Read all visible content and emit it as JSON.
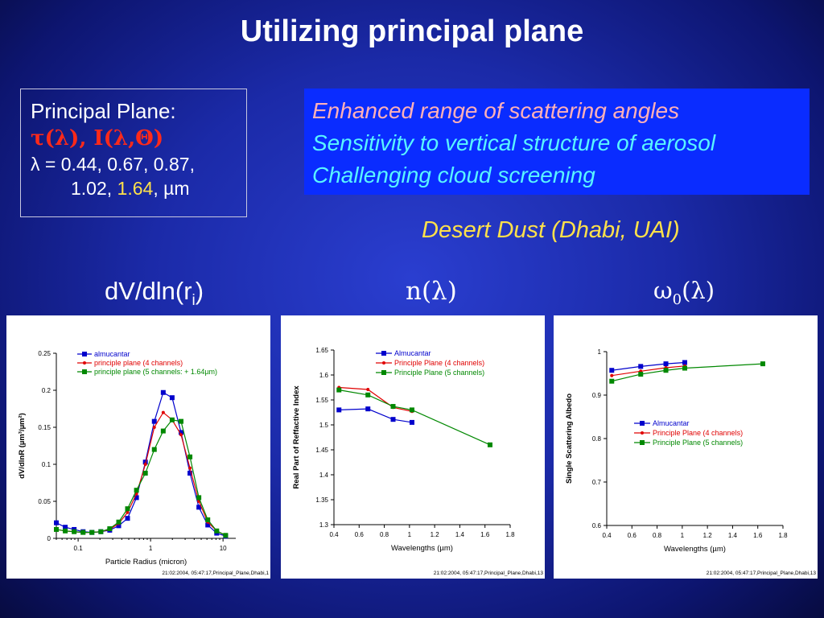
{
  "title": "Utilizing principal plane",
  "principal_plane": {
    "heading": "Principal Plane:",
    "quantities": "τ(λ), I(λ,Θ)",
    "lambda_line": "λ = 0.44, 0.67, 0.87,",
    "lambda_line2_a": "1.02, ",
    "lambda_line2_b": "1.64",
    "lambda_line2_c": ", µm"
  },
  "features": [
    "Enhanced range of scattering angles",
    "Sensitivity to vertical structure of aerosol",
    "Challenging cloud screening"
  ],
  "dust_label": "Desert Dust (Dhabi, UAI)",
  "panel_titles": {
    "size": "dV/dln(r",
    "size_sub": "i",
    "size_close": ")",
    "refr": "n(λ)",
    "ssa": "ω",
    "ssa_sub": "0",
    "ssa_arg": "(λ)"
  },
  "colors": {
    "almucantar": "#0000cc",
    "pp4": "#e00000",
    "pp5": "#008800"
  },
  "chart_data": [
    {
      "type": "line",
      "xlabel": "Particle Radius (micron)",
      "ylabel": "dV/dlnR (µm³/µm²)",
      "xscale": "log",
      "xlim": [
        0.05,
        15
      ],
      "ylim": [
        0,
        0.25
      ],
      "xticks": [
        "0.1",
        "1",
        "10"
      ],
      "yticks": [
        "0",
        "0.05",
        "0.1",
        "0.15",
        "0.2",
        "0.25"
      ],
      "footer": "21:02:2004, 05:47:17,Principal_Plane,Dhabi,1",
      "legend_position": "top",
      "x": [
        0.05,
        0.0664,
        0.0881,
        0.117,
        0.155,
        0.206,
        0.273,
        0.363,
        0.481,
        0.639,
        0.848,
        1.126,
        1.495,
        1.984,
        2.634,
        3.497,
        4.642,
        6.162,
        8.18,
        10.86
      ],
      "series": [
        {
          "name": "almucantar",
          "color": "#0000cc",
          "marker": "square",
          "values": [
            0.021,
            0.015,
            0.012,
            0.009,
            0.008,
            0.009,
            0.011,
            0.017,
            0.027,
            0.055,
            0.103,
            0.158,
            0.197,
            0.19,
            0.143,
            0.088,
            0.042,
            0.018,
            0.007,
            0.003
          ]
        },
        {
          "name": "principle plane (4 channels)",
          "color": "#e00000",
          "marker": "dot",
          "values": [
            0.012,
            0.01,
            0.009,
            0.008,
            0.008,
            0.009,
            0.012,
            0.02,
            0.035,
            0.06,
            0.1,
            0.15,
            0.17,
            0.16,
            0.14,
            0.095,
            0.05,
            0.022,
            0.01,
            0.004
          ]
        },
        {
          "name": "principle plane (5 channels: + 1.64µm)",
          "color": "#008800",
          "marker": "square",
          "values": [
            0.012,
            0.01,
            0.009,
            0.008,
            0.008,
            0.009,
            0.013,
            0.022,
            0.04,
            0.065,
            0.088,
            0.12,
            0.145,
            0.16,
            0.158,
            0.11,
            0.055,
            0.025,
            0.01,
            0.004
          ]
        }
      ]
    },
    {
      "type": "line",
      "xlabel": "Wavelengths (µm)",
      "ylabel": "Real Part of  Reffactive Index",
      "xlim": [
        0.4,
        1.8
      ],
      "ylim": [
        1.3,
        1.65
      ],
      "xticks": [
        "0.4",
        "0.6",
        "0.8",
        "1",
        "1.2",
        "1.4",
        "1.6",
        "1.8"
      ],
      "yticks": [
        "1.3",
        "1.35",
        "1.4",
        "1.45",
        "1.5",
        "1.55",
        "1.6",
        "1.65"
      ],
      "footer": "21:02:2004, 05:47:17,Principal_Plane,Dhabi,13",
      "legend_position": "top-center",
      "series": [
        {
          "name": "Almucantar",
          "color": "#0000cc",
          "marker": "square",
          "x": [
            0.44,
            0.67,
            0.87,
            1.02
          ],
          "values": [
            1.53,
            1.532,
            1.511,
            1.505
          ]
        },
        {
          "name": "Principle Plane (4 channels)",
          "color": "#e00000",
          "marker": "dot",
          "x": [
            0.44,
            0.67,
            0.87,
            1.02
          ],
          "values": [
            1.575,
            1.571,
            1.535,
            1.527
          ]
        },
        {
          "name": "Principle Plane (5 channels)",
          "color": "#008800",
          "marker": "square",
          "x": [
            0.44,
            0.67,
            0.87,
            1.02,
            1.64
          ],
          "values": [
            1.57,
            1.56,
            1.537,
            1.53,
            1.46
          ]
        }
      ]
    },
    {
      "type": "line",
      "xlabel": "Wavelengths (µm)",
      "ylabel": "Single Scattering Albedo",
      "xlim": [
        0.4,
        1.8
      ],
      "ylim": [
        0.6,
        1.0
      ],
      "xticks": [
        "0.4",
        "0.6",
        "0.8",
        "1",
        "1.2",
        "1.4",
        "1.6",
        "1.8"
      ],
      "yticks": [
        "0.6",
        "0.7",
        "0.8",
        "0.9",
        "1"
      ],
      "footer": "21:02:2004, 05:47:17,Principal_Plane,Dhabi,13",
      "legend_position": "center-right",
      "series": [
        {
          "name": "Almucantar",
          "color": "#0000cc",
          "marker": "square",
          "x": [
            0.44,
            0.67,
            0.87,
            1.02
          ],
          "values": [
            0.957,
            0.966,
            0.972,
            0.975
          ]
        },
        {
          "name": "Principle Plane (4 channels)",
          "color": "#e00000",
          "marker": "dot",
          "x": [
            0.44,
            0.67,
            0.87,
            1.02
          ],
          "values": [
            0.945,
            0.955,
            0.963,
            0.967
          ]
        },
        {
          "name": "Principle Plane (5 channels)",
          "color": "#008800",
          "marker": "square",
          "x": [
            0.44,
            0.67,
            0.87,
            1.02,
            1.64
          ],
          "values": [
            0.932,
            0.948,
            0.957,
            0.962,
            0.972
          ]
        }
      ]
    }
  ]
}
